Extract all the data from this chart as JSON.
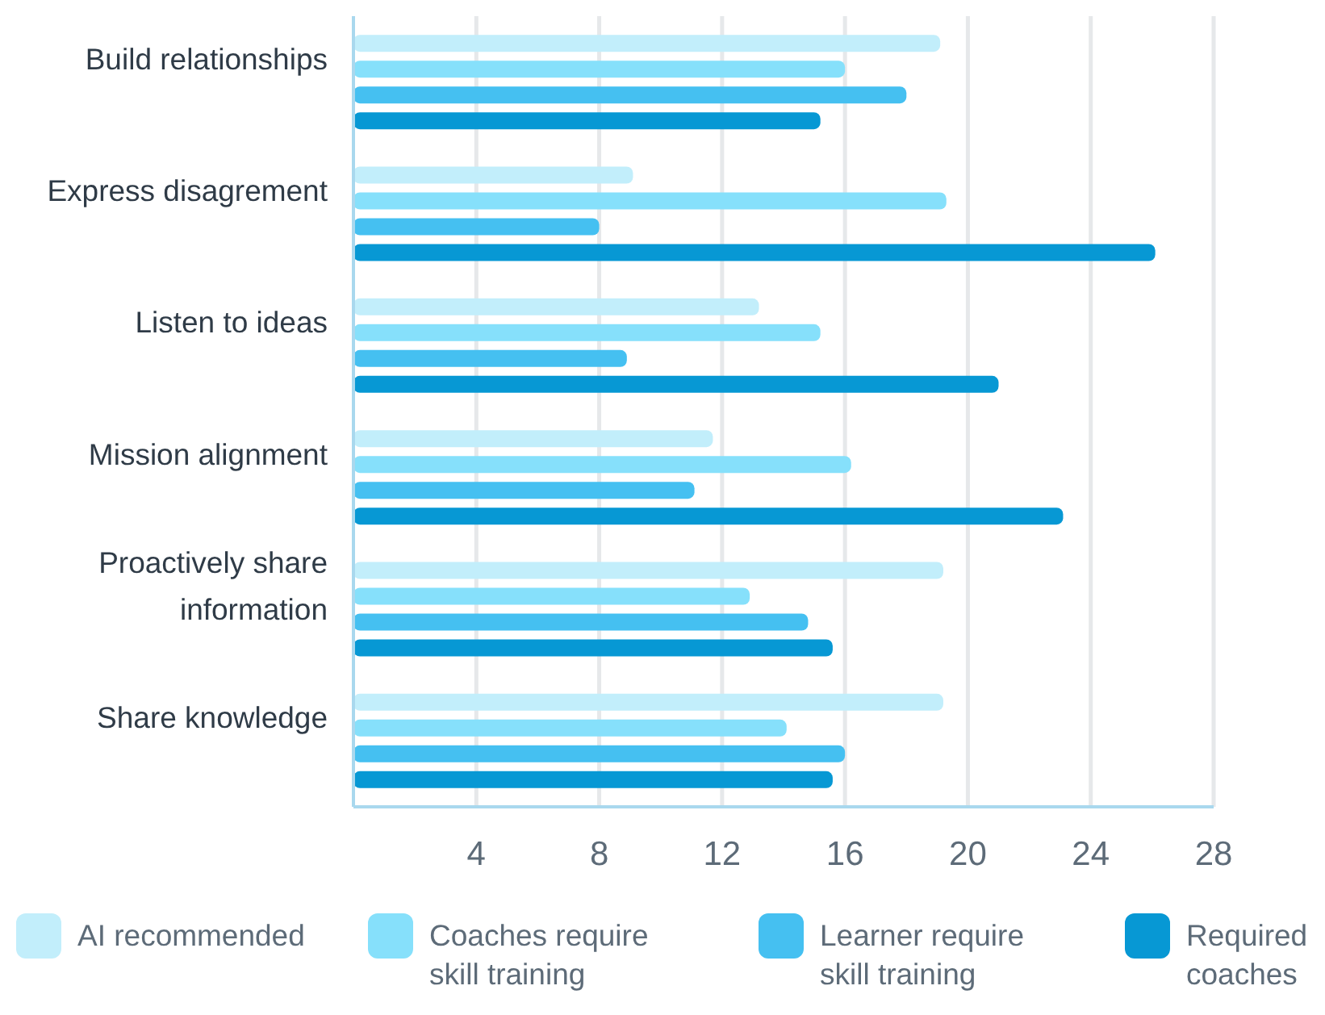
{
  "chart_data": {
    "type": "bar",
    "orientation": "horizontal",
    "categories": [
      "Build relationships",
      "Express disagrement",
      "Listen to ideas",
      "Mission alignment",
      "Proactively share information",
      "Share knowledge"
    ],
    "series": [
      {
        "name": "AI recommended",
        "color": "#c2eefb",
        "values": [
          19.1,
          9.1,
          13.2,
          11.7,
          19.2,
          19.2
        ]
      },
      {
        "name": "Coaches require skill training",
        "color": "#86e0fb",
        "values": [
          16.0,
          19.3,
          15.2,
          16.2,
          12.9,
          14.1
        ]
      },
      {
        "name": "Learner require skill training",
        "color": "#45c0f1",
        "values": [
          18.0,
          8.0,
          8.9,
          11.1,
          14.8,
          16.0
        ]
      },
      {
        "name": "Required coaches",
        "color": "#0798d4",
        "values": [
          15.2,
          26.1,
          21.0,
          23.1,
          15.6,
          15.6
        ]
      }
    ],
    "xlim": [
      0,
      28
    ],
    "xticks": [
      4,
      8,
      12,
      16,
      20,
      24,
      28
    ],
    "grid": "x",
    "legend": "bottom"
  }
}
